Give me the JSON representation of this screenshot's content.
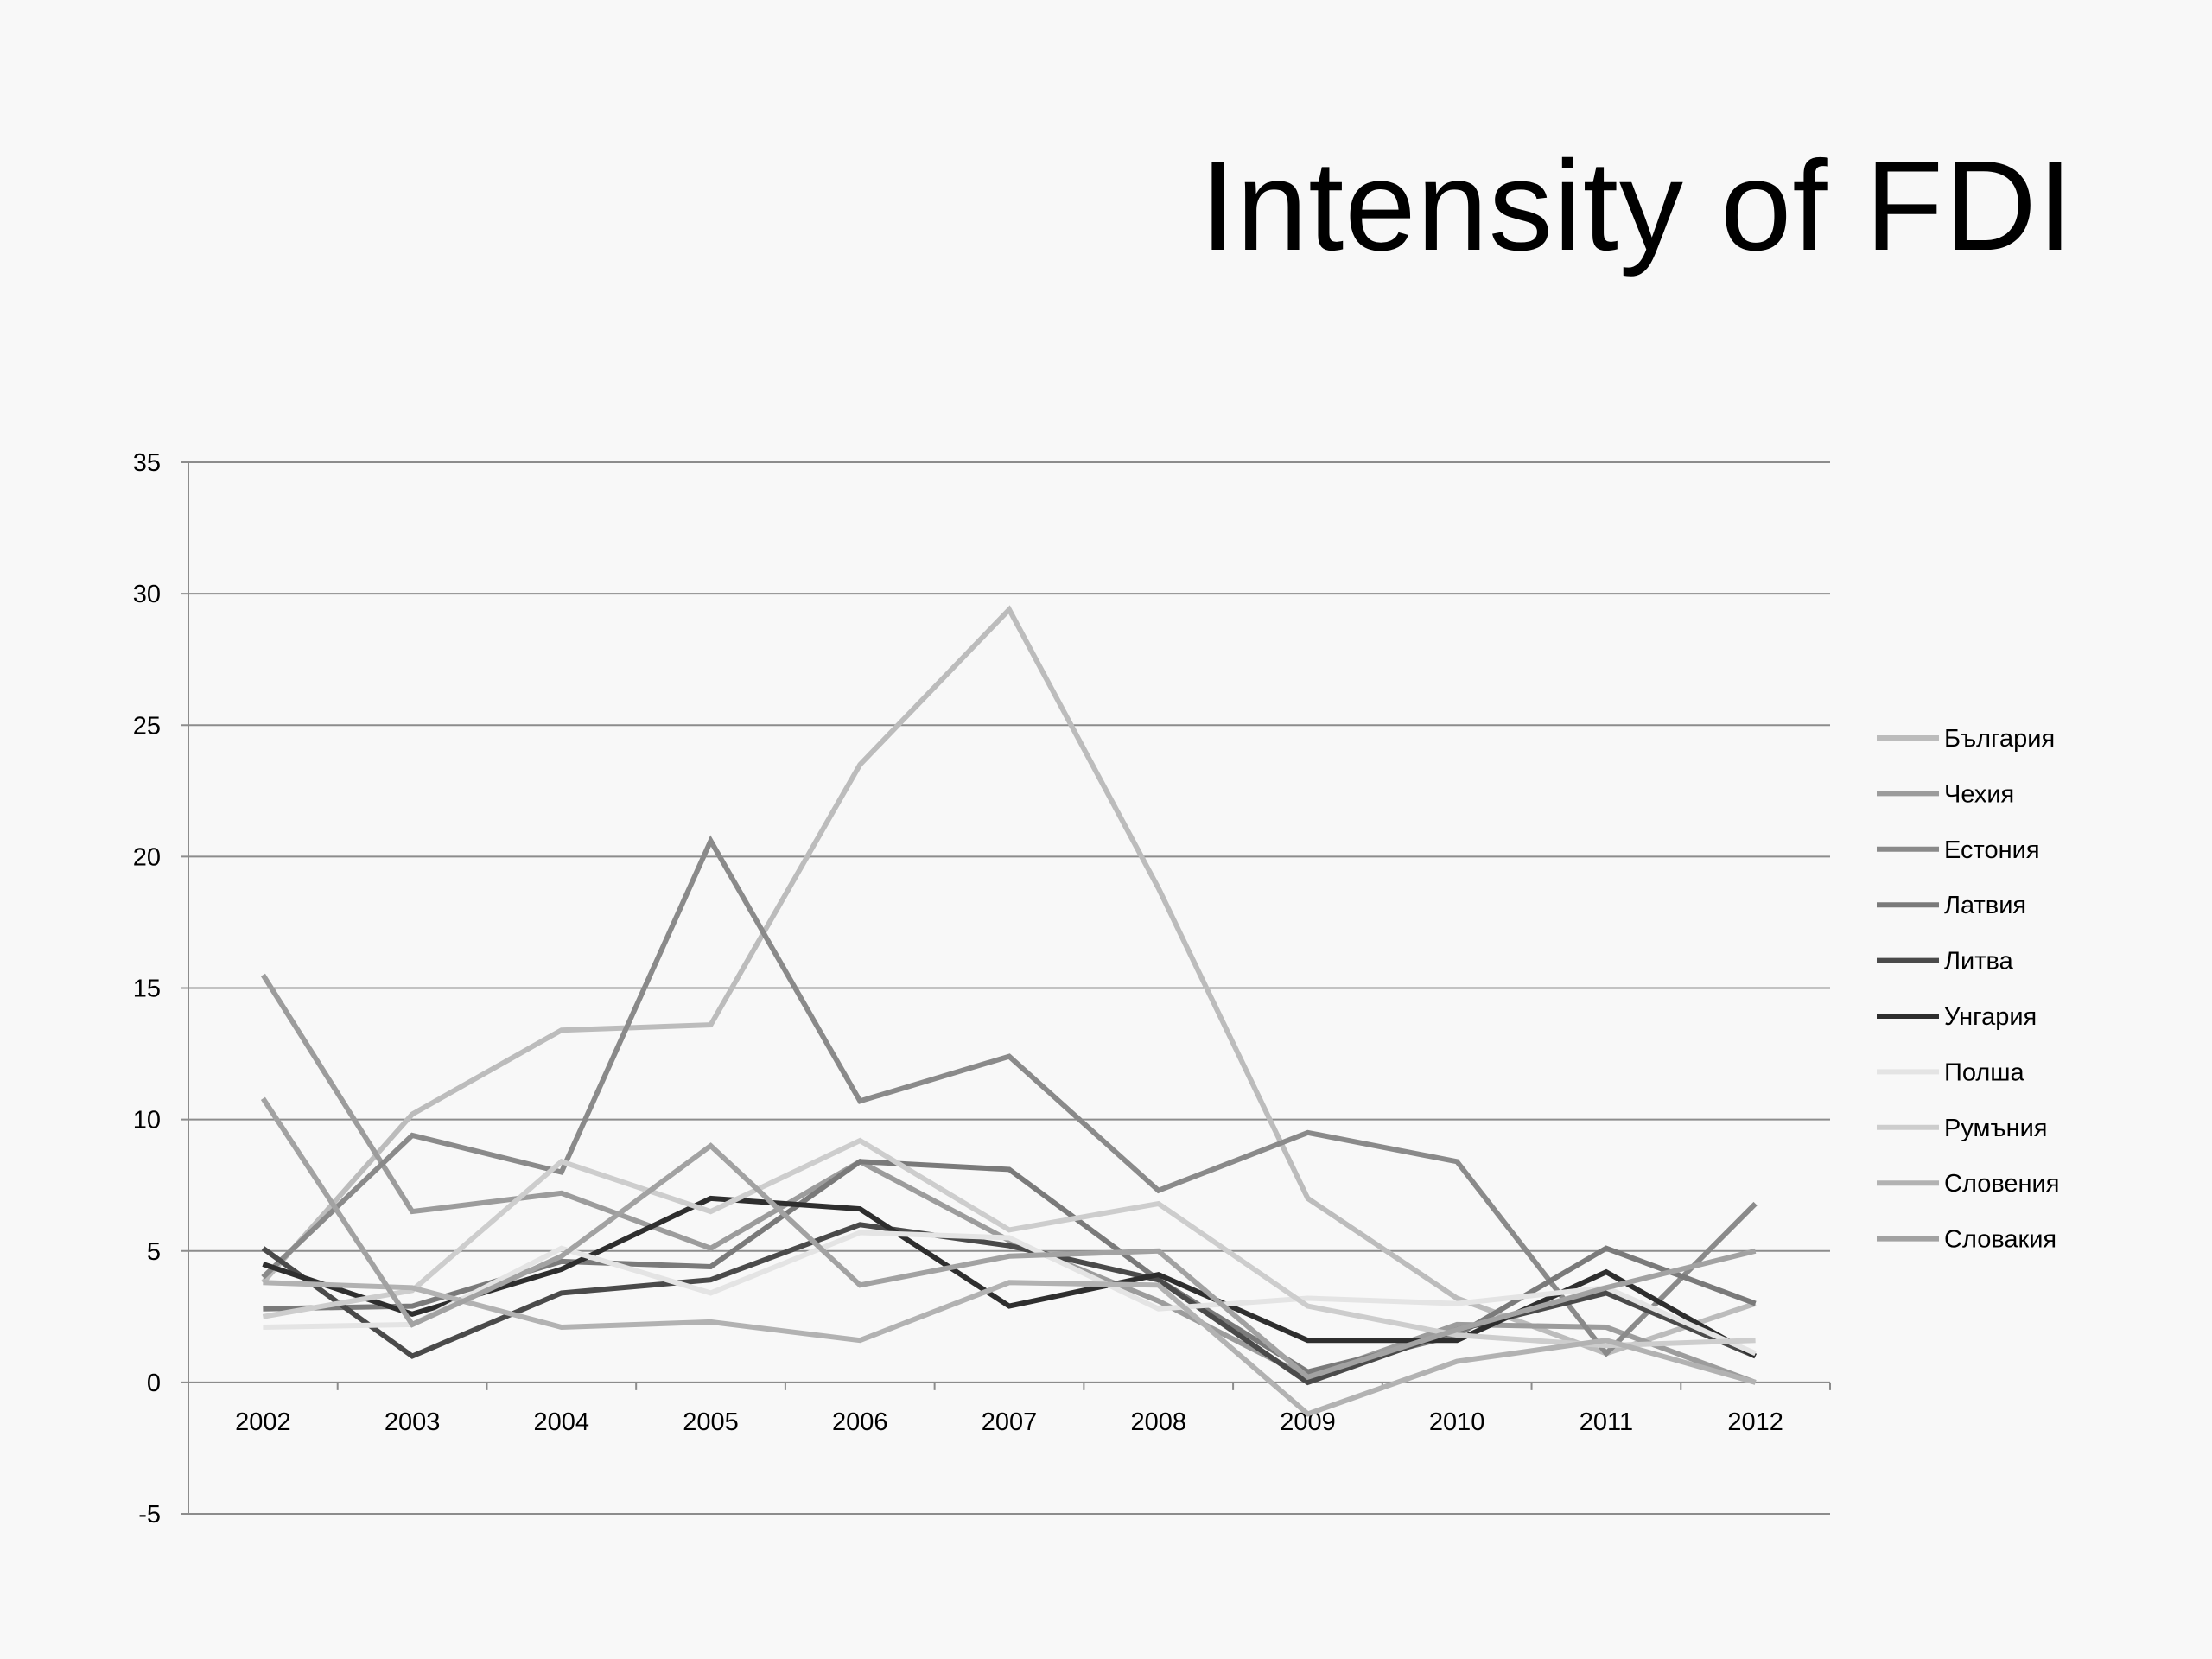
{
  "title": "Intensity of FDI",
  "chart_data": {
    "type": "line",
    "title": "",
    "xlabel": "",
    "ylabel": "",
    "x": [
      "2002",
      "2003",
      "2004",
      "2005",
      "2006",
      "2007",
      "2008",
      "2009",
      "2010",
      "2011",
      "2012"
    ],
    "ylim": [
      -5,
      35
    ],
    "yticks": [
      35,
      30,
      25,
      20,
      15,
      10,
      5,
      0,
      -5
    ],
    "grid": true,
    "legend_position": "right",
    "series": [
      {
        "name": "България",
        "color": "#bcbcbc",
        "values": [
          3.8,
          10.2,
          13.4,
          13.6,
          23.5,
          29.4,
          18.8,
          7.0,
          3.2,
          1.1,
          3.0
        ]
      },
      {
        "name": "Чехия",
        "color": "#9c9c9c",
        "values": [
          15.5,
          6.5,
          7.2,
          5.1,
          8.4,
          5.4,
          3.1,
          0.2,
          2.2,
          2.1,
          0.0
        ]
      },
      {
        "name": "Естония",
        "color": "#8a8a8a",
        "values": [
          4.0,
          9.4,
          8.0,
          20.6,
          10.7,
          12.4,
          7.3,
          9.5,
          8.4,
          1.1,
          6.8
        ]
      },
      {
        "name": "Латвия",
        "color": "#7a7a7a",
        "values": [
          2.8,
          2.9,
          4.6,
          4.4,
          8.4,
          8.1,
          3.9,
          0.4,
          1.8,
          5.1,
          3.0
        ]
      },
      {
        "name": "Литва",
        "color": "#4a4a4a",
        "values": [
          5.1,
          1.0,
          3.4,
          3.9,
          6.0,
          5.2,
          3.9,
          0.0,
          2.0,
          3.4,
          1.0
        ]
      },
      {
        "name": "Унгария",
        "color": "#2e2e2e",
        "values": [
          4.5,
          2.6,
          4.3,
          7.0,
          6.6,
          2.9,
          4.1,
          1.6,
          1.6,
          4.2,
          1.0
        ]
      },
      {
        "name": "Полша",
        "color": "#e4e4e4",
        "values": [
          2.1,
          2.2,
          5.1,
          3.4,
          5.7,
          5.5,
          2.8,
          3.2,
          3.0,
          3.6,
          1.1
        ]
      },
      {
        "name": "Румъния",
        "color": "#cdcdcd",
        "values": [
          2.5,
          3.5,
          8.4,
          6.5,
          9.2,
          5.8,
          6.8,
          2.9,
          1.8,
          1.4,
          1.6
        ]
      },
      {
        "name": "Словения",
        "color": "#b2b2b2",
        "values": [
          3.8,
          3.6,
          2.1,
          2.3,
          1.6,
          3.8,
          3.7,
          -1.2,
          0.8,
          1.6,
          0.0
        ]
      },
      {
        "name": "Словакия",
        "color": "#a2a2a2",
        "values": [
          10.8,
          2.2,
          4.8,
          9.0,
          3.7,
          4.8,
          5.0,
          0.2,
          2.0,
          3.6,
          5.0
        ]
      }
    ]
  }
}
